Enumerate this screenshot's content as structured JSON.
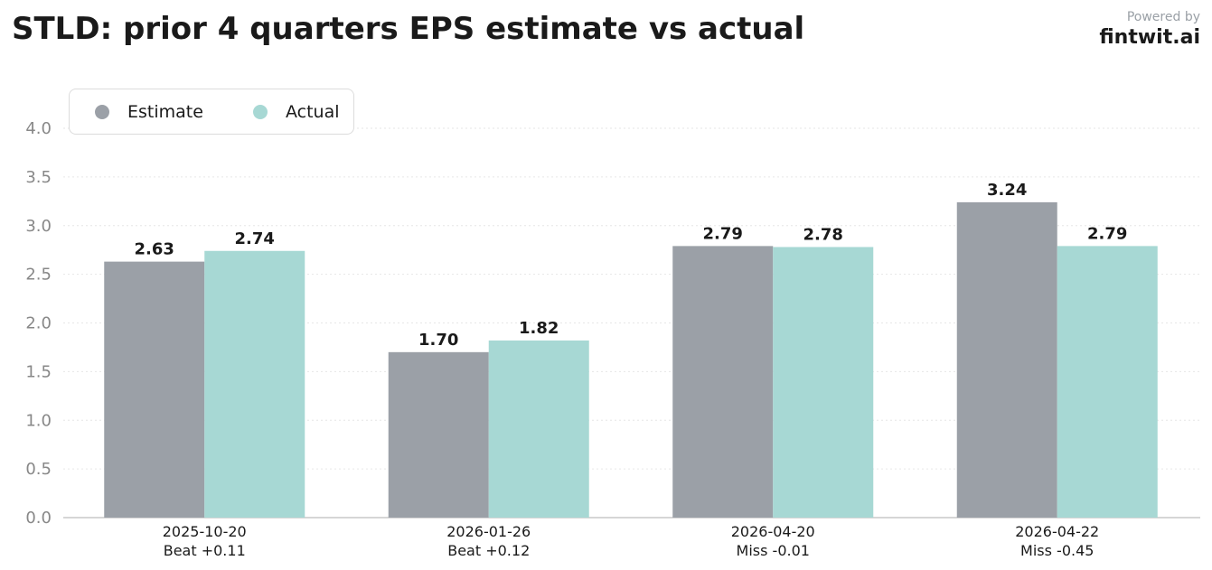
{
  "header": {
    "title": "STLD: prior 4 quarters EPS estimate vs actual",
    "powered_by": "Powered by",
    "brand": "fintwit.ai"
  },
  "colors": {
    "estimate": "#9ba0a7",
    "actual": "#a7d8d4",
    "axis": "#c8c8c8",
    "grid": "#e6e6e6",
    "tick_text": "#888888"
  },
  "chart_data": {
    "type": "bar",
    "title": "STLD: prior 4 quarters EPS estimate vs actual",
    "categories": [
      "2025-10-20",
      "2026-01-26",
      "2026-04-20",
      "2026-04-22"
    ],
    "category_sublabels": [
      "Beat +0.11",
      "Beat +0.12",
      "Miss -0.01",
      "Miss -0.45"
    ],
    "series": [
      {
        "name": "Estimate",
        "values": [
          2.63,
          1.7,
          2.79,
          3.24
        ],
        "labels": [
          "2.63",
          "1.70",
          "2.79",
          "3.24"
        ]
      },
      {
        "name": "Actual",
        "values": [
          2.74,
          1.82,
          2.78,
          2.79
        ],
        "labels": [
          "2.74",
          "1.82",
          "2.78",
          "2.79"
        ]
      }
    ],
    "yticks": [
      "0.0",
      "0.5",
      "1.0",
      "1.5",
      "2.0",
      "2.5",
      "3.0",
      "3.5",
      "4.0"
    ],
    "ylim": [
      0,
      4.0
    ],
    "grid": true,
    "legend": "top-left",
    "xlabel": "",
    "ylabel": ""
  }
}
